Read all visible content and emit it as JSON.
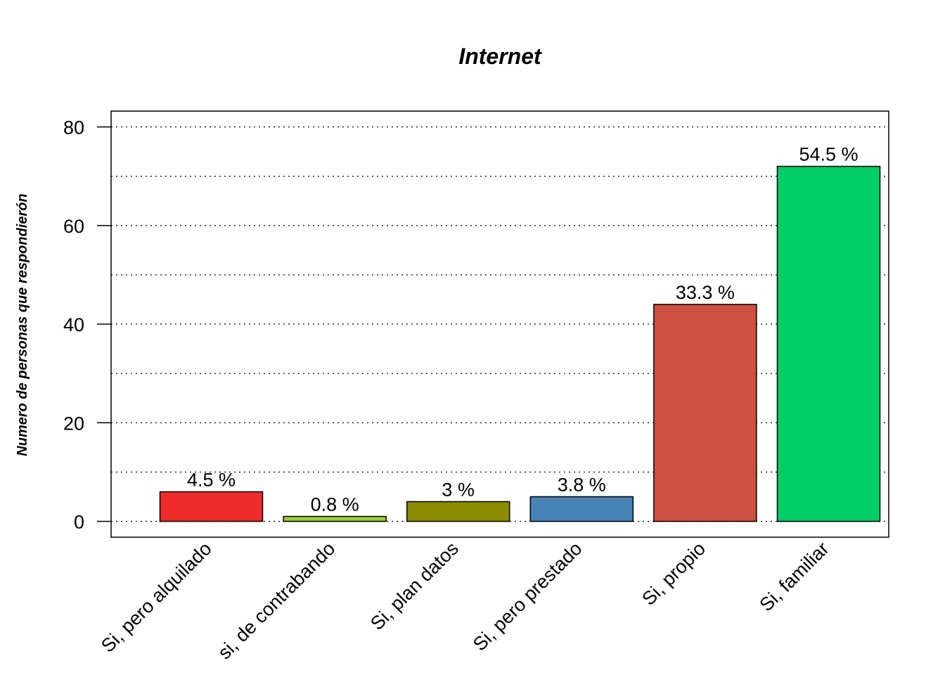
{
  "chart_data": {
    "type": "bar",
    "title": "Internet",
    "xlabel": "",
    "ylabel": "Numero de personas que respondierón",
    "categories": [
      "Si, pero alquilado",
      "si, de contrabando",
      "Si, plan datos",
      "Si, pero prestado",
      "Si, propio",
      "Si, familiar"
    ],
    "values": [
      6,
      1,
      4,
      5,
      44,
      72
    ],
    "labels": [
      "4.5 %",
      "0.8 %",
      "3 %",
      "3.8 %",
      "33.3 %",
      "54.5 %"
    ],
    "colors": [
      "#ee2c2c",
      "#9acd32",
      "#8b8b00",
      "#4682b4",
      "#cd5040",
      "#00cd66"
    ],
    "ylim": [
      0,
      80
    ],
    "yticks": [
      0,
      20,
      40,
      60,
      80
    ],
    "ygrid": [
      0,
      10,
      20,
      30,
      40,
      50,
      60,
      70,
      80
    ],
    "grid": true
  }
}
